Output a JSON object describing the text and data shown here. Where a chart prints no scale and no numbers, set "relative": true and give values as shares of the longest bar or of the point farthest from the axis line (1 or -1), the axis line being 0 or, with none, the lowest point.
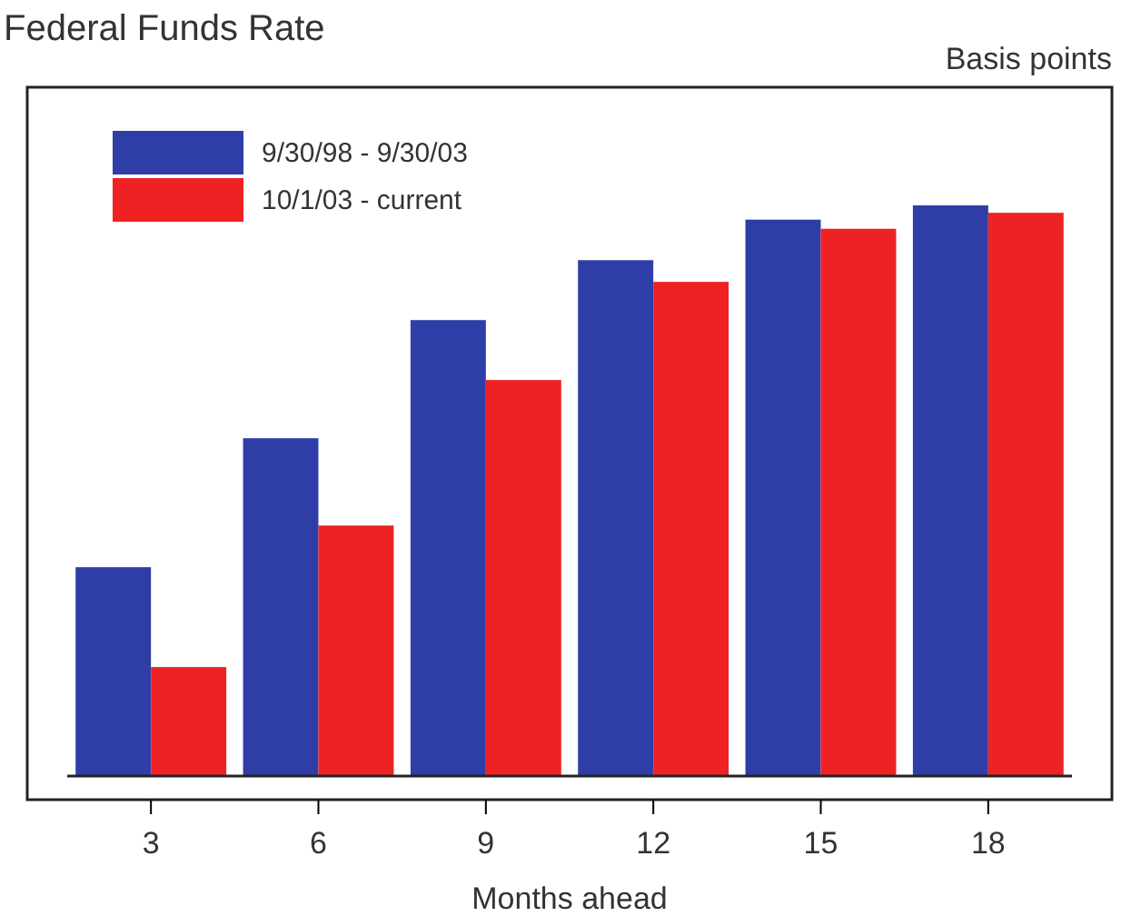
{
  "chart_data": {
    "type": "bar",
    "title": "Federal Funds Rate",
    "ylabel": "Basis points",
    "xlabel": "Months ahead",
    "relative": true,
    "legend": "top left",
    "categories": [
      "3",
      "6",
      "9",
      "12",
      "15",
      "18"
    ],
    "series": [
      {
        "name": "9/30/98 - 9/30/03",
        "color": "#2f3ea6",
        "values": [
          0.366,
          0.592,
          0.799,
          0.904,
          0.975,
          1
        ]
      },
      {
        "name": "10/1/03 - current",
        "color": "#ee2222",
        "values": [
          0.191,
          0.439,
          0.694,
          0.866,
          0.959,
          0.987
        ]
      }
    ]
  }
}
